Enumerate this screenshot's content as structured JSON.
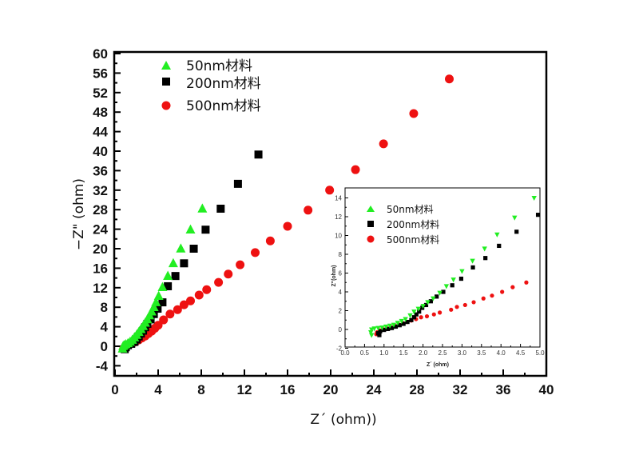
{
  "chart_data": [
    {
      "id": "main",
      "type": "scatter",
      "title": "",
      "xlabel": "Z´  (ohm))",
      "ylabel": "−Z\" (ohm)",
      "xlim": [
        0,
        40
      ],
      "ylim": [
        -6,
        60
      ],
      "xticks": [
        0,
        4,
        8,
        12,
        16,
        20,
        24,
        28,
        32,
        36,
        40
      ],
      "yticks": [
        -4,
        0,
        4,
        8,
        12,
        16,
        20,
        24,
        28,
        32,
        36,
        40,
        44,
        48,
        52,
        56,
        60
      ],
      "grid": false,
      "legend_position": "top-left",
      "series": [
        {
          "name": "50nm材料",
          "marker": "triangle-up",
          "color": "#22ee22",
          "points": [
            [
              0.7,
              -0.5
            ],
            [
              0.75,
              0.0
            ],
            [
              0.85,
              0.2
            ],
            [
              1.0,
              0.4
            ],
            [
              1.2,
              0.6
            ],
            [
              1.4,
              0.9
            ],
            [
              1.6,
              1.3
            ],
            [
              1.8,
              1.8
            ],
            [
              2.0,
              2.3
            ],
            [
              2.2,
              2.9
            ],
            [
              2.4,
              3.5
            ],
            [
              2.6,
              4.1
            ],
            [
              2.8,
              4.8
            ],
            [
              3.0,
              5.5
            ],
            [
              3.2,
              6.3
            ],
            [
              3.4,
              7.1
            ],
            [
              3.6,
              8.0
            ],
            [
              3.8,
              9.0
            ],
            [
              4.05,
              10.3
            ],
            [
              4.4,
              12.1
            ],
            [
              4.9,
              14.4
            ],
            [
              5.4,
              17.0
            ],
            [
              6.1,
              20.0
            ],
            [
              7.0,
              23.9
            ],
            [
              8.1,
              28.2
            ]
          ]
        },
        {
          "name": "200nm材料",
          "marker": "square",
          "color": "#000000",
          "points": [
            [
              0.9,
              -0.6
            ],
            [
              1.0,
              -0.2
            ],
            [
              1.2,
              0.2
            ],
            [
              1.5,
              0.5
            ],
            [
              1.8,
              0.9
            ],
            [
              2.0,
              1.4
            ],
            [
              2.2,
              2.0
            ],
            [
              2.4,
              2.6
            ],
            [
              2.6,
              3.2
            ],
            [
              2.8,
              3.9
            ],
            [
              3.0,
              4.6
            ],
            [
              3.3,
              5.5
            ],
            [
              3.6,
              6.6
            ],
            [
              3.95,
              7.7
            ],
            [
              4.4,
              9.0
            ],
            [
              4.9,
              12.3
            ],
            [
              5.6,
              14.4
            ],
            [
              6.4,
              17.0
            ],
            [
              7.3,
              20.0
            ],
            [
              8.4,
              23.9
            ],
            [
              9.8,
              28.2
            ],
            [
              11.4,
              33.3
            ],
            [
              13.3,
              39.3
            ]
          ]
        },
        {
          "name": "500nm材料",
          "marker": "circle",
          "color": "#ee1111",
          "points": [
            [
              0.8,
              -0.5
            ],
            [
              1.0,
              0.0
            ],
            [
              1.3,
              0.3
            ],
            [
              1.6,
              0.6
            ],
            [
              1.9,
              0.9
            ],
            [
              2.2,
              1.3
            ],
            [
              2.5,
              1.7
            ],
            [
              2.8,
              2.1
            ],
            [
              3.1,
              2.6
            ],
            [
              3.4,
              3.1
            ],
            [
              3.7,
              3.7
            ],
            [
              4.0,
              4.3
            ],
            [
              4.5,
              5.4
            ],
            [
              5.1,
              6.6
            ],
            [
              5.8,
              7.5
            ],
            [
              6.4,
              8.5
            ],
            [
              7.0,
              9.3
            ],
            [
              7.8,
              10.5
            ],
            [
              8.5,
              11.6
            ],
            [
              9.6,
              13.1
            ],
            [
              10.5,
              14.8
            ],
            [
              11.6,
              16.7
            ],
            [
              13.0,
              19.2
            ],
            [
              14.4,
              21.6
            ],
            [
              16.0,
              24.6
            ],
            [
              17.9,
              27.9
            ],
            [
              19.9,
              32.0
            ],
            [
              22.3,
              36.2
            ],
            [
              24.9,
              41.5
            ],
            [
              27.7,
              47.7
            ],
            [
              31.0,
              54.8
            ]
          ]
        }
      ]
    },
    {
      "id": "inset",
      "type": "scatter",
      "title": "",
      "xlabel": "Z´  (ohm)",
      "ylabel": "Z\"(ohm)",
      "xlim": [
        0,
        5
      ],
      "ylim": [
        -2,
        15
      ],
      "xticks": [
        "0.0",
        "0.5",
        "1.0",
        "1.5",
        "2.0",
        "2.5",
        "3.0",
        "3.5",
        "4.0",
        "4.5",
        "5.0"
      ],
      "yticks": [
        -2,
        0,
        2,
        4,
        6,
        8,
        10,
        12,
        14
      ],
      "grid": false,
      "legend_position": "top-left",
      "series": [
        {
          "name": "50nm材料",
          "marker": "triangle-down",
          "color": "#22ee22",
          "points": [
            [
              0.68,
              -0.6
            ],
            [
              0.66,
              -0.3
            ],
            [
              0.68,
              0.0
            ],
            [
              0.75,
              0.1
            ],
            [
              0.85,
              0.15
            ],
            [
              0.95,
              0.2
            ],
            [
              1.05,
              0.3
            ],
            [
              1.15,
              0.4
            ],
            [
              1.25,
              0.5
            ],
            [
              1.35,
              0.7
            ],
            [
              1.45,
              0.9
            ],
            [
              1.55,
              1.1
            ],
            [
              1.67,
              1.5
            ],
            [
              1.77,
              1.9
            ],
            [
              1.88,
              2.2
            ],
            [
              2.0,
              2.5
            ],
            [
              2.12,
              2.9
            ],
            [
              2.26,
              3.3
            ],
            [
              2.43,
              3.9
            ],
            [
              2.6,
              4.6
            ],
            [
              2.78,
              5.3
            ],
            [
              3.0,
              6.2
            ],
            [
              3.27,
              7.3
            ],
            [
              3.58,
              8.6
            ],
            [
              3.9,
              10.1
            ],
            [
              4.35,
              11.9
            ],
            [
              4.85,
              14.0
            ]
          ]
        },
        {
          "name": "200nm材料",
          "marker": "square",
          "color": "#000000",
          "points": [
            [
              0.88,
              -0.6
            ],
            [
              0.85,
              -0.4
            ],
            [
              0.9,
              -0.2
            ],
            [
              1.0,
              -0.05
            ],
            [
              1.1,
              0.05
            ],
            [
              1.2,
              0.15
            ],
            [
              1.3,
              0.3
            ],
            [
              1.4,
              0.45
            ],
            [
              1.5,
              0.6
            ],
            [
              1.6,
              0.8
            ],
            [
              1.7,
              1.0
            ],
            [
              1.77,
              1.3
            ],
            [
              1.83,
              1.6
            ],
            [
              1.9,
              1.9
            ],
            [
              1.98,
              2.3
            ],
            [
              2.08,
              2.6
            ],
            [
              2.2,
              3.0
            ],
            [
              2.35,
              3.5
            ],
            [
              2.52,
              4.0
            ],
            [
              2.75,
              4.7
            ],
            [
              2.98,
              5.4
            ],
            [
              3.28,
              6.6
            ],
            [
              3.6,
              7.6
            ],
            [
              3.95,
              8.9
            ],
            [
              4.4,
              10.4
            ],
            [
              4.95,
              12.2
            ]
          ]
        },
        {
          "name": "500nm材料",
          "marker": "circle",
          "color": "#ee1111",
          "points": [
            [
              0.8,
              -0.5
            ],
            [
              0.82,
              -0.3
            ],
            [
              0.9,
              -0.1
            ],
            [
              1.0,
              0.0
            ],
            [
              1.1,
              0.1
            ],
            [
              1.2,
              0.2
            ],
            [
              1.3,
              0.35
            ],
            [
              1.4,
              0.5
            ],
            [
              1.5,
              0.65
            ],
            [
              1.6,
              0.8
            ],
            [
              1.7,
              0.95
            ],
            [
              1.82,
              1.1
            ],
            [
              1.95,
              1.3
            ],
            [
              2.1,
              1.4
            ],
            [
              2.28,
              1.6
            ],
            [
              2.43,
              1.8
            ],
            [
              2.72,
              2.1
            ],
            [
              2.87,
              2.4
            ],
            [
              3.08,
              2.6
            ],
            [
              3.3,
              2.9
            ],
            [
              3.55,
              3.3
            ],
            [
              3.77,
              3.6
            ],
            [
              4.03,
              4.0
            ],
            [
              4.3,
              4.5
            ],
            [
              4.65,
              5.0
            ]
          ]
        }
      ]
    }
  ]
}
